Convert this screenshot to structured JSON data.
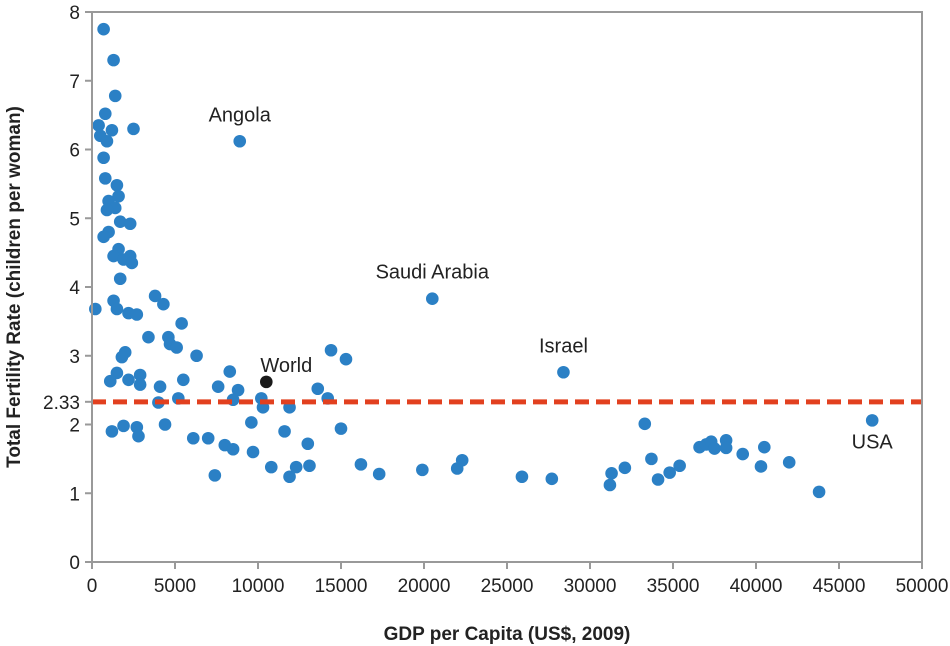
{
  "chart_data": {
    "type": "scatter",
    "xlabel": "GDP per Capita (US$, 2009)",
    "ylabel": "Total Fertility Rate (children per woman)",
    "xlim": [
      0,
      50000
    ],
    "ylim": [
      0,
      8
    ],
    "xticks": [
      0,
      5000,
      10000,
      15000,
      20000,
      25000,
      30000,
      35000,
      40000,
      45000,
      50000
    ],
    "yticks": [
      0,
      1,
      2,
      3,
      4,
      5,
      6,
      7,
      8
    ],
    "grid": false,
    "reference_line": {
      "y": 2.33,
      "label": "2.33",
      "color": "#e2401f",
      "style": "dashed"
    },
    "point_color": "#2b80c5",
    "highlight_color": "#1a1a1a",
    "labeled_points": [
      {
        "label": "Angola",
        "x": 8900,
        "y": 6.12
      },
      {
        "label": "Saudi Arabia",
        "x": 20500,
        "y": 3.83
      },
      {
        "label": "Israel",
        "x": 28400,
        "y": 2.76
      },
      {
        "label": "USA",
        "x": 47000,
        "y": 2.06
      },
      {
        "label": "World",
        "x": 10500,
        "y": 2.62,
        "highlight": true
      }
    ],
    "points": [
      [
        700,
        7.75
      ],
      [
        1300,
        7.3
      ],
      [
        1400,
        6.78
      ],
      [
        800,
        6.52
      ],
      [
        400,
        6.35
      ],
      [
        1200,
        6.28
      ],
      [
        2500,
        6.3
      ],
      [
        500,
        6.2
      ],
      [
        900,
        6.12
      ],
      [
        700,
        5.88
      ],
      [
        800,
        5.58
      ],
      [
        1500,
        5.48
      ],
      [
        1000,
        5.25
      ],
      [
        1600,
        5.32
      ],
      [
        1400,
        5.15
      ],
      [
        900,
        5.12
      ],
      [
        1700,
        4.95
      ],
      [
        2300,
        4.92
      ],
      [
        1000,
        4.8
      ],
      [
        700,
        4.73
      ],
      [
        1600,
        4.55
      ],
      [
        2300,
        4.45
      ],
      [
        1300,
        4.45
      ],
      [
        1900,
        4.4
      ],
      [
        2400,
        4.35
      ],
      [
        1700,
        4.12
      ],
      [
        3800,
        3.87
      ],
      [
        4300,
        3.75
      ],
      [
        1300,
        3.8
      ],
      [
        200,
        3.68
      ],
      [
        1500,
        3.68
      ],
      [
        2200,
        3.62
      ],
      [
        2700,
        3.6
      ],
      [
        5400,
        3.47
      ],
      [
        3400,
        3.27
      ],
      [
        4600,
        3.27
      ],
      [
        4700,
        3.17
      ],
      [
        5100,
        3.12
      ],
      [
        2000,
        3.05
      ],
      [
        6300,
        3.0
      ],
      [
        1800,
        2.98
      ],
      [
        1500,
        2.75
      ],
      [
        2900,
        2.72
      ],
      [
        2200,
        2.65
      ],
      [
        1100,
        2.63
      ],
      [
        5500,
        2.65
      ],
      [
        8300,
        2.77
      ],
      [
        2900,
        2.58
      ],
      [
        4100,
        2.55
      ],
      [
        7600,
        2.55
      ],
      [
        8800,
        2.5
      ],
      [
        13600,
        2.52
      ],
      [
        14400,
        3.08
      ],
      [
        15300,
        2.95
      ],
      [
        5200,
        2.38
      ],
      [
        8500,
        2.36
      ],
      [
        10200,
        2.38
      ],
      [
        14200,
        2.38
      ],
      [
        4000,
        2.32
      ],
      [
        10300,
        2.25
      ],
      [
        11900,
        2.25
      ],
      [
        9600,
        2.03
      ],
      [
        4400,
        2.0
      ],
      [
        1900,
        1.98
      ],
      [
        2700,
        1.96
      ],
      [
        15000,
        1.94
      ],
      [
        1200,
        1.9
      ],
      [
        2800,
        1.83
      ],
      [
        11600,
        1.9
      ],
      [
        6100,
        1.8
      ],
      [
        7000,
        1.8
      ],
      [
        8000,
        1.7
      ],
      [
        13000,
        1.72
      ],
      [
        8500,
        1.64
      ],
      [
        9700,
        1.6
      ],
      [
        10800,
        1.38
      ],
      [
        12300,
        1.38
      ],
      [
        13100,
        1.4
      ],
      [
        16200,
        1.42
      ],
      [
        7400,
        1.26
      ],
      [
        11900,
        1.24
      ],
      [
        17300,
        1.28
      ],
      [
        19900,
        1.34
      ],
      [
        22000,
        1.36
      ],
      [
        22300,
        1.48
      ],
      [
        25900,
        1.24
      ],
      [
        27700,
        1.21
      ],
      [
        31200,
        1.12
      ],
      [
        31300,
        1.29
      ],
      [
        32100,
        1.37
      ],
      [
        33300,
        2.01
      ],
      [
        33700,
        1.5
      ],
      [
        34100,
        1.2
      ],
      [
        34800,
        1.3
      ],
      [
        35400,
        1.4
      ],
      [
        36600,
        1.67
      ],
      [
        37000,
        1.71
      ],
      [
        37300,
        1.75
      ],
      [
        37500,
        1.65
      ],
      [
        38200,
        1.77
      ],
      [
        38200,
        1.66
      ],
      [
        39200,
        1.57
      ],
      [
        40300,
        1.39
      ],
      [
        40500,
        1.67
      ],
      [
        42000,
        1.45
      ],
      [
        43800,
        1.02
      ]
    ]
  }
}
